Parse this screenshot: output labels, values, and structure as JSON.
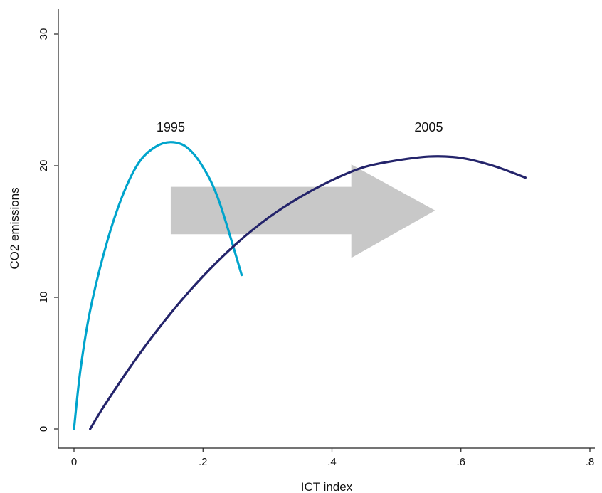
{
  "chart_data": {
    "type": "line",
    "title": "",
    "xlabel": "ICT index",
    "ylabel": "CO2 emissions",
    "xlim": [
      0,
      0.8
    ],
    "ylim": [
      0,
      30
    ],
    "x_ticks": [
      {
        "value": 0,
        "label": "0"
      },
      {
        "value": 0.2,
        "label": ".2"
      },
      {
        "value": 0.4,
        "label": ".4"
      },
      {
        "value": 0.6,
        "label": ".6"
      },
      {
        "value": 0.8,
        "label": ".8"
      }
    ],
    "y_ticks": [
      {
        "value": 0,
        "label": "0"
      },
      {
        "value": 10,
        "label": "10"
      },
      {
        "value": 20,
        "label": "20"
      },
      {
        "value": 30,
        "label": "30"
      }
    ],
    "grid": false,
    "legend": "none",
    "series": [
      {
        "name": "1995",
        "color": "#00a4cc",
        "x": [
          0.0,
          0.01,
          0.025,
          0.05,
          0.075,
          0.1,
          0.125,
          0.15,
          0.175,
          0.2,
          0.225,
          0.26
        ],
        "y": [
          0.0,
          4.5,
          9.0,
          14.0,
          17.7,
          20.2,
          21.4,
          21.8,
          21.4,
          19.9,
          17.3,
          11.7
        ]
      },
      {
        "name": "2005",
        "color": "#24246b",
        "x": [
          0.025,
          0.05,
          0.1,
          0.15,
          0.2,
          0.25,
          0.3,
          0.35,
          0.4,
          0.45,
          0.5,
          0.55,
          0.6,
          0.65,
          0.7
        ],
        "y": [
          0.0,
          2.0,
          5.6,
          8.8,
          11.6,
          14.0,
          16.0,
          17.6,
          18.9,
          19.9,
          20.4,
          20.7,
          20.6,
          20.0,
          19.1
        ]
      }
    ],
    "annotations": [
      {
        "type": "arrow",
        "color": "#c8c8c8",
        "from": [
          0.15,
          16.6
        ],
        "to": [
          0.56,
          16.6
        ],
        "body_ymin": 14.8,
        "body_ymax": 18.4,
        "head_start_x": 0.43,
        "head_ymin": 13.0,
        "head_ymax": 20.1
      }
    ],
    "labels": [
      {
        "text": "1995",
        "x": 0.15,
        "y": 22.6
      },
      {
        "text": "2005",
        "x": 0.55,
        "y": 22.6
      }
    ]
  }
}
